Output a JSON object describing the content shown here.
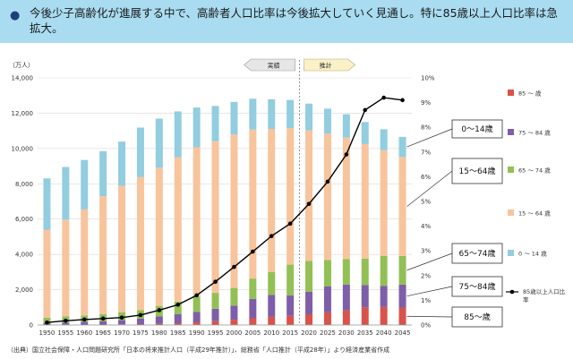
{
  "banner": {
    "bullet": "●",
    "text": "今後少子高齢化が進展する中で、高齢者人口比率は今後拡大していく見通し。特に85歳以上人口比率は急拡大。"
  },
  "source": "（出典）国立社会保障・人口問題研究所「日本の将来推計人口（平成29年推計）」、総務省「人口推計（平成28年）」より経済産業省作成",
  "colors": {
    "age85": "#d9534a",
    "age75_84": "#7e5ea8",
    "age65_74": "#92c054",
    "age15_64": "#f8c49c",
    "age0_14": "#92cde0",
    "line": "#000000"
  },
  "chart_data": {
    "type": "bar",
    "stacked": true,
    "title": "",
    "y_left_unit": "（万人）",
    "y_left_lim": [
      0,
      14000
    ],
    "y_left_ticks": [
      "0",
      "2,000",
      "4,000",
      "6,000",
      "8,000",
      "10,000",
      "12,000",
      "14,000"
    ],
    "y_right_lim": [
      0,
      10
    ],
    "y_right_ticks": [
      "0%",
      "1%",
      "2%",
      "3%",
      "4%",
      "5%",
      "6%",
      "7%",
      "8%",
      "9%",
      "10%"
    ],
    "categories": [
      "1950",
      "1955",
      "1960",
      "1965",
      "1970",
      "1975",
      "1980",
      "1985",
      "1990",
      "1995",
      "2000",
      "2005",
      "2010",
      "2015",
      "2020",
      "2025",
      "2030",
      "2035",
      "2040",
      "2045"
    ],
    "arrow_actual": "実績",
    "arrow_projection": "推計",
    "series": [
      {
        "name": "85 ～ 歳",
        "key": "age85",
        "values": [
          10,
          15,
          20,
          25,
          35,
          50,
          70,
          100,
          150,
          220,
          300,
          380,
          460,
          520,
          610,
          720,
          830,
          1000,
          1020,
          990
        ]
      },
      {
        "name": "75 ～ 84 歳",
        "key": "age75_84",
        "values": [
          95,
          120,
          160,
          190,
          240,
          320,
          410,
          520,
          600,
          700,
          800,
          1100,
          1250,
          1150,
          1270,
          1460,
          1460,
          1260,
          1200,
          1300
        ]
      },
      {
        "name": "65 ～ 74 歳",
        "key": "age65_74",
        "values": [
          310,
          360,
          360,
          400,
          450,
          470,
          600,
          700,
          850,
          900,
          1000,
          1150,
          1300,
          1750,
          1750,
          1500,
          1450,
          1500,
          1700,
          1620
        ]
      },
      {
        "name": "15 ～ 64 歳",
        "key": "age15_64",
        "values": [
          4970,
          5475,
          6010,
          6685,
          7165,
          7545,
          7830,
          8180,
          8470,
          8590,
          8690,
          8440,
          8100,
          7730,
          7400,
          7170,
          6880,
          6490,
          5980,
          5610
        ]
      },
      {
        "name": "0 ～ 14 歳",
        "key": "age0_14",
        "values": [
          2920,
          2980,
          2800,
          2550,
          2500,
          2800,
          2780,
          2600,
          2250,
          2000,
          1850,
          1750,
          1680,
          1600,
          1510,
          1410,
          1320,
          1250,
          1190,
          1140
        ]
      },
      {
        "name": "85歳以上人口比率",
        "key": "line",
        "axis": "right",
        "type": "line",
        "values": [
          0.1,
          0.17,
          0.22,
          0.26,
          0.3,
          0.4,
          0.6,
          0.82,
          1.2,
          1.75,
          2.35,
          2.97,
          3.6,
          4.1,
          4.9,
          5.8,
          6.9,
          8.7,
          9.2,
          9.1
        ]
      }
    ],
    "callouts": [
      {
        "text": "0～14歳",
        "series": "age0_14"
      },
      {
        "text": "15～64歳",
        "series": "age15_64"
      },
      {
        "text": "65～74歳",
        "series": "age65_74"
      },
      {
        "text": "75～84歳",
        "series": "age75_84"
      },
      {
        "text": "85～歳",
        "series": "age85"
      }
    ]
  }
}
